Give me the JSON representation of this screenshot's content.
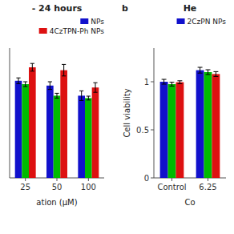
{
  "chart_data": [
    {
      "type": "bar",
      "title": "- 24 hours",
      "xlabel": "ation (μM)",
      "categories": [
        "25",
        "50",
        "100"
      ],
      "series": [
        {
          "name": "NPs",
          "color": "#1111CC",
          "values": [
            1.01,
            0.96,
            0.855
          ],
          "errors": [
            0.03,
            0.04,
            0.05
          ]
        },
        {
          "color": "#00BB00",
          "values": [
            0.975,
            0.855,
            0.83
          ],
          "errors": [
            0.025,
            0.025,
            0.02
          ]
        },
        {
          "name": "4CzTPN-Ph NPs",
          "color": "#DD1111",
          "values": [
            1.15,
            1.12,
            0.94
          ],
          "errors": [
            0.04,
            0.06,
            0.05
          ]
        }
      ],
      "ylim": [
        0.0,
        1.35
      ],
      "tick_labels": "x",
      "legend": "upper right"
    },
    {
      "type": "bar",
      "title": "He",
      "xlabel": "Co",
      "ylabel": "Cell viability",
      "annotations": [
        "b"
      ],
      "categories": [
        "Control",
        "6.25"
      ],
      "series": [
        {
          "name": "2CzPN NPs",
          "color": "#1111CC",
          "values": [
            1.0,
            1.12
          ],
          "errors": [
            0.025,
            0.03
          ]
        },
        {
          "color": "#00BB00",
          "values": [
            0.975,
            1.1
          ],
          "errors": [
            0.02,
            0.025
          ]
        },
        {
          "color": "#DD1111",
          "values": [
            0.995,
            1.08
          ],
          "errors": [
            0.015,
            0.025
          ]
        }
      ],
      "ylim": [
        0.0,
        1.35
      ],
      "yticks": [
        0,
        0.5,
        1
      ],
      "legend": "upper right"
    }
  ]
}
